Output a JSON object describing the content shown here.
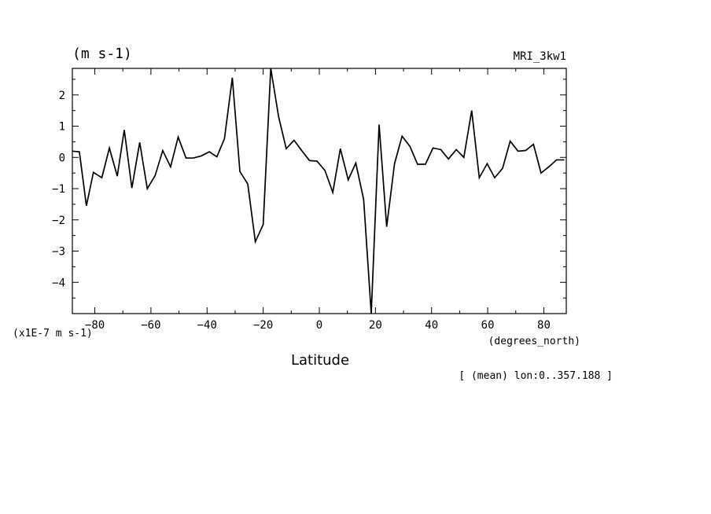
{
  "chart_data": {
    "type": "line",
    "units_label": "(m s-1)",
    "model_label": "MRI_3kw1",
    "scale_label": "(x1E-7 m s-1)",
    "xunit_label": "(degrees_north)",
    "xlabel": "Latitude",
    "footnote": "[ (mean) lon:0..357.188 ]",
    "xlim": [
      -88,
      88
    ],
    "ylim": [
      -5,
      2.85
    ],
    "x_ticks": [
      -80,
      -60,
      -40,
      -20,
      0,
      20,
      40,
      60,
      80
    ],
    "x_tick_labels": [
      "−80",
      "−60",
      "−40",
      "−20",
      "0",
      "20",
      "40",
      "60",
      "80"
    ],
    "y_ticks": [
      -4,
      -3,
      -2,
      -1,
      0,
      1,
      2
    ],
    "y_tick_labels": [
      "−4",
      "−3",
      "−2",
      "−1",
      "0",
      "1",
      "2"
    ],
    "series": [
      {
        "x": [
          -88,
          -85.5,
          -83,
          -80.5,
          -77.5,
          -74.8,
          -72,
          -69.5,
          -66.8,
          -64,
          -61.3,
          -58.5,
          -55.8,
          -53,
          -50.3,
          -47.5,
          -44.8,
          -42,
          -39.2,
          -36.5,
          -33.8,
          -31,
          -28.3,
          -25.5,
          -22.8,
          -20,
          -17.3,
          -14.5,
          -11.8,
          -9,
          -6.3,
          -3.5,
          -0.8,
          2,
          4.8,
          7.5,
          10.3,
          13,
          15.8,
          18.5,
          21.3,
          24,
          26.8,
          29.5,
          32.3,
          35,
          37.8,
          40.5,
          43.3,
          46,
          48.8,
          51.5,
          54.3,
          57,
          59.8,
          62.5,
          65.3,
          68,
          70.8,
          73.5,
          76.3,
          79,
          81.8,
          84.5,
          87.3
        ],
        "y": [
          0.2,
          0.18,
          -1.55,
          -0.48,
          -0.65,
          0.3,
          -0.6,
          0.88,
          -0.98,
          0.48,
          -1.0,
          -0.58,
          0.22,
          -0.3,
          0.65,
          -0.02,
          -0.02,
          0.05,
          0.18,
          0.02,
          0.6,
          2.55,
          -0.45,
          -0.85,
          -2.7,
          -2.15,
          2.85,
          1.3,
          0.28,
          0.55,
          0.22,
          -0.1,
          -0.12,
          -0.42,
          -1.12,
          0.28,
          -0.72,
          -0.18,
          -1.35,
          -5.0,
          1.05,
          -2.22,
          -0.2,
          0.68,
          0.35,
          -0.22,
          -0.22,
          0.3,
          0.25,
          -0.05,
          0.25,
          0.0,
          1.5,
          -0.65,
          -0.2,
          -0.65,
          -0.35,
          0.52,
          0.2,
          0.22,
          0.42,
          -0.5,
          -0.3,
          -0.08,
          -0.08
        ]
      }
    ],
    "grid": false,
    "line_color": "#000000"
  }
}
